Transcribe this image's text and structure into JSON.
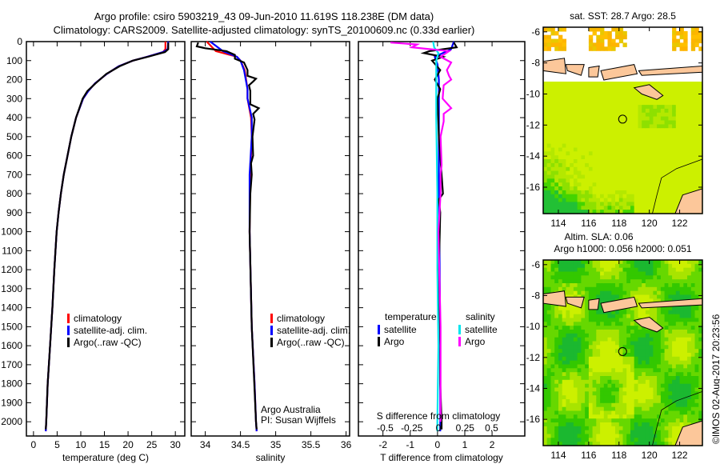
{
  "title_line1": "Argo profile: csiro 5903219_43 09-Jun-2010 11.619S 118.238E (DM data)",
  "title_line2": "Climatology: CARS2009. Satellite-adjusted climatology: synTS_20100609.nc (0.33d earlier)",
  "copyright": "©IMOS 02-Aug-2017 20:23:56",
  "colors": {
    "climatology": "#ff0000",
    "satellite": "#0000ff",
    "argo": "#000000",
    "sal_satellite": "#00e5ee",
    "sal_argo": "#ff00ff"
  },
  "chart_data": [
    {
      "type": "line",
      "id": "temperature",
      "xlabel": "temperature (deg C)",
      "ylabel": "",
      "xlim": [
        -1.5,
        32
      ],
      "ylim": [
        2075,
        0
      ],
      "xticks": [
        "0",
        "5",
        "10",
        "15",
        "20",
        "25",
        "30"
      ],
      "yticks": [
        "0",
        "100",
        "200",
        "300",
        "400",
        "500",
        "600",
        "700",
        "800",
        "900",
        "1000",
        "1100",
        "1200",
        "1300",
        "1400",
        "1500",
        "1600",
        "1700",
        "1800",
        "1900",
        "2000"
      ],
      "legend": [
        "climatology",
        "satellite-adj. clim.",
        "Argo(..raw -QC)"
      ],
      "series": [
        {
          "name": "climatology",
          "color_key": "climatology",
          "depth": [
            0,
            40,
            55,
            80,
            100,
            130,
            170,
            220,
            260,
            300,
            400,
            500,
            600,
            700,
            800,
            900,
            1000,
            1200,
            1400,
            1600,
            1800,
            2000,
            2050
          ],
          "values": [
            27.9,
            27.9,
            27.4,
            24,
            21,
            18,
            15.5,
            13,
            11.6,
            10.5,
            9,
            8,
            7.2,
            6.4,
            5.8,
            5.3,
            4.9,
            4.4,
            4.0,
            3.5,
            3.0,
            2.7,
            2.6
          ]
        },
        {
          "name": "satellite-adj. clim.",
          "color_key": "satellite",
          "depth": [
            0,
            40,
            55,
            80,
            100,
            130,
            170,
            220,
            260,
            300,
            400,
            500,
            600,
            700,
            800,
            900,
            1000,
            1200,
            1400,
            1600,
            1800,
            2000,
            2050
          ],
          "values": [
            28.5,
            28.4,
            27.4,
            24,
            21,
            18,
            15.5,
            13,
            11.6,
            10.5,
            9,
            8,
            7.2,
            6.4,
            5.8,
            5.3,
            4.9,
            4.4,
            4.0,
            3.5,
            3.0,
            2.7,
            2.6
          ]
        },
        {
          "name": "Argo(..raw -QC)",
          "color_key": "argo",
          "depth": [
            5,
            40,
            55,
            80,
            100,
            130,
            170,
            220,
            260,
            300,
            400,
            500,
            600,
            700,
            800,
            900,
            1000,
            1200,
            1400,
            1600,
            1800,
            2000,
            2040
          ],
          "values": [
            28.5,
            28.5,
            27.8,
            24.2,
            21,
            18.2,
            15.4,
            13.1,
            11.4,
            10.4,
            9,
            8,
            7.2,
            6.4,
            5.8,
            5.3,
            4.9,
            4.4,
            4.0,
            3.5,
            3.0,
            2.7,
            2.6
          ]
        }
      ]
    },
    {
      "type": "line",
      "id": "salinity",
      "xlabel": "salinity",
      "xlim": [
        33.8,
        36.05
      ],
      "ylim": [
        2075,
        0
      ],
      "xticks": [
        "34",
        "34.5",
        "35",
        "35.5",
        "36"
      ],
      "legend": [
        "climatology",
        "satellite-adj. clim.",
        "Argo(..raw -QC)"
      ],
      "annotation": [
        "Argo Australia",
        "PI: Susan Wijffels"
      ],
      "series": [
        {
          "name": "climatology",
          "color_key": "climatology",
          "depth": [
            0,
            50,
            80,
            100,
            150,
            250,
            300,
            400,
            500,
            700,
            1000,
            1500,
            1800,
            2000,
            2050
          ],
          "values": [
            34.02,
            34.15,
            34.45,
            34.5,
            34.56,
            34.6,
            34.6,
            34.65,
            34.66,
            34.64,
            34.63,
            34.66,
            34.7,
            34.72,
            34.73
          ]
        },
        {
          "name": "satellite-adj. clim.",
          "color_key": "satellite",
          "depth": [
            0,
            50,
            80,
            100,
            150,
            250,
            300,
            400,
            500,
            700,
            1000,
            1500,
            1800,
            2000,
            2050
          ],
          "values": [
            34.07,
            34.25,
            34.45,
            34.5,
            34.55,
            34.6,
            34.6,
            34.66,
            34.66,
            34.63,
            34.63,
            34.66,
            34.7,
            34.72,
            34.73
          ]
        },
        {
          "name": "Argo(..raw -QC)",
          "color_key": "argo",
          "depth": [
            5,
            25,
            35,
            50,
            70,
            90,
            110,
            150,
            180,
            195,
            210,
            230,
            260,
            330,
            350,
            380,
            410,
            500,
            600,
            640,
            700,
            800,
            1000,
            1500,
            2000,
            2040
          ],
          "values": [
            33.9,
            33.88,
            34.0,
            34.3,
            34.42,
            34.42,
            34.55,
            34.6,
            34.6,
            34.72,
            34.68,
            34.62,
            34.64,
            34.64,
            34.76,
            34.68,
            34.7,
            34.67,
            34.68,
            34.65,
            34.66,
            34.64,
            34.63,
            34.66,
            34.72,
            34.73
          ]
        }
      ]
    },
    {
      "type": "line",
      "id": "differences",
      "xlabel": "T difference from climatology",
      "xlabel2": "S difference from climatology",
      "xlim": [
        -2.9,
        3.2
      ],
      "ylim": [
        2075,
        0
      ],
      "xticks": [
        "-2",
        "-1",
        "0",
        "1",
        "2"
      ],
      "xticks_s": [
        "-0.5",
        "-0.25",
        "0",
        "0.25",
        "0.5"
      ],
      "legend_headers": [
        "temperature",
        "salinity"
      ],
      "legend": [
        "satellite",
        "Argo",
        "satellite",
        "Argo"
      ],
      "series": [
        {
          "name": "temperature satellite",
          "color_key": "satellite",
          "units": "T",
          "depth": [
            0,
            40,
            60,
            80,
            120,
            200,
            400,
            800,
            1200,
            1600,
            2000,
            2050
          ],
          "values": [
            0.6,
            0.5,
            0.2,
            -0.1,
            0.0,
            0.05,
            0.05,
            0.05,
            0.08,
            0.1,
            0.1,
            0.1
          ]
        },
        {
          "name": "temperature Argo",
          "color_key": "argo",
          "units": "T",
          "depth": [
            5,
            30,
            50,
            60,
            80,
            100,
            150,
            200,
            250,
            300,
            500,
            800,
            830,
            900,
            1200,
            1600,
            1800,
            2000,
            2040
          ],
          "values": [
            0.6,
            0.7,
            -0.3,
            -0.5,
            0.2,
            -0.2,
            0.1,
            -0.1,
            0.1,
            0.0,
            0.05,
            0.2,
            0.05,
            0.1,
            0.05,
            0.1,
            0.1,
            0.15,
            0.15
          ]
        },
        {
          "name": "salinity satellite",
          "color_key": "sal_satellite",
          "units": "S",
          "depth": [
            0,
            30,
            60,
            100,
            200,
            400,
            800,
            1200,
            1600,
            2000,
            2050
          ],
          "values": [
            -0.05,
            -0.04,
            0.0,
            -0.02,
            -0.02,
            -0.02,
            -0.01,
            -0.01,
            0.0,
            -0.01,
            -0.01
          ]
        },
        {
          "name": "salinity Argo",
          "color_key": "sal_argo",
          "units": "S",
          "depth": [
            5,
            15,
            30,
            50,
            80,
            110,
            150,
            180,
            200,
            230,
            300,
            350,
            380,
            420,
            500,
            650,
            700,
            800,
            1000,
            1500,
            2000
          ],
          "values": [
            -0.45,
            -0.2,
            -0.25,
            0.1,
            0.02,
            0.12,
            0.08,
            0.1,
            0.12,
            0.05,
            0.04,
            0.12,
            0.05,
            0.05,
            0.02,
            0.03,
            0.02,
            0.02,
            0.0,
            0.02,
            0.02
          ]
        }
      ]
    },
    {
      "type": "heatmap",
      "id": "sst_map",
      "title": "sat. SST: 28.7 Argo: 28.5",
      "xlim": [
        113,
        123.5
      ],
      "ylim": [
        -17.7,
        -5.7
      ],
      "xticks": [
        "114",
        "116",
        "118",
        "120",
        "122"
      ],
      "yticks": [
        "-6",
        "-8",
        "-10",
        "-12",
        "-14",
        "-16"
      ],
      "argo_position": {
        "lon": 118.238,
        "lat": -11.619
      }
    },
    {
      "type": "heatmap",
      "id": "sla_map",
      "title": "Altim. SLA: 0.06",
      "subtitle": "Argo h1000: 0.056 h2000: 0.051",
      "xlim": [
        113,
        123.5
      ],
      "ylim": [
        -17.7,
        -5.7
      ],
      "xticks": [
        "114",
        "116",
        "118",
        "120",
        "122"
      ],
      "yticks": [
        "-6",
        "-8",
        "-10",
        "-12",
        "-14",
        "-16"
      ],
      "argo_position": {
        "lon": 118.238,
        "lat": -11.619
      }
    }
  ]
}
